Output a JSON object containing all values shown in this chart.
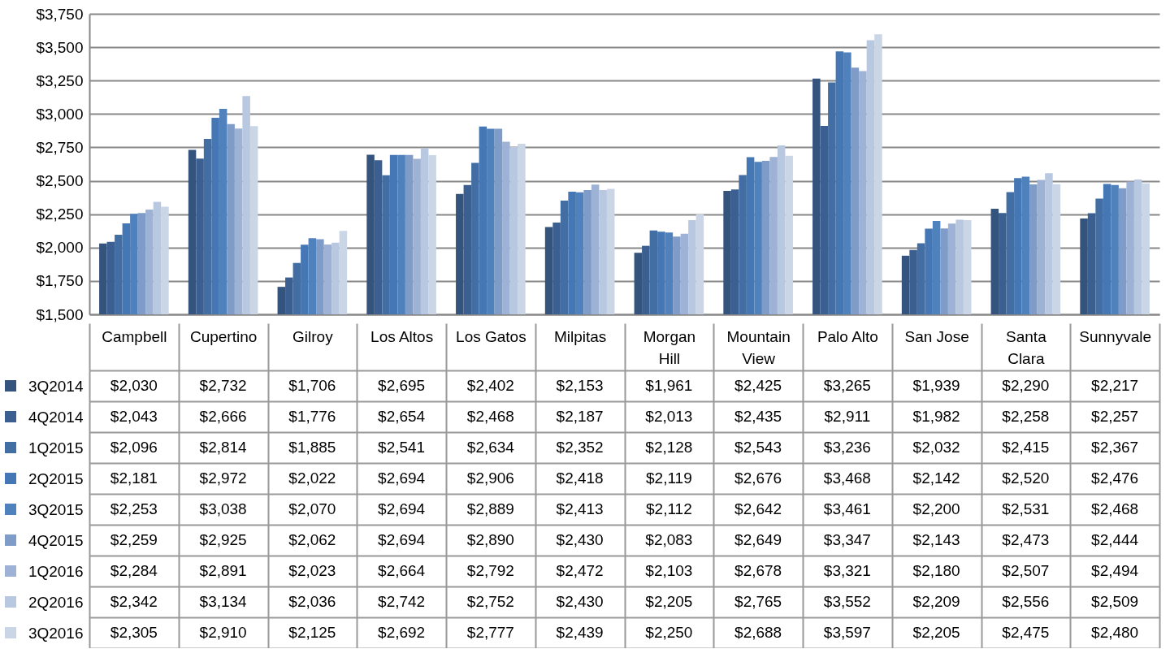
{
  "chart_data": {
    "type": "bar",
    "categories": [
      "Campbell",
      "Cupertino",
      "Gilroy",
      "Los Altos",
      "Los Gatos",
      "Milpitas",
      "Morgan Hill",
      "Mountain View",
      "Palo Alto",
      "San Jose",
      "Santa Clara",
      "Sunnyvale"
    ],
    "ylim": [
      1500,
      3750
    ],
    "yticks": [
      {
        "value": 1500,
        "label": "$1,500"
      },
      {
        "value": 1750,
        "label": "$1,750"
      },
      {
        "value": 2000,
        "label": "$2,000"
      },
      {
        "value": 2250,
        "label": "$2,250"
      },
      {
        "value": 2500,
        "label": "$2,500"
      },
      {
        "value": 2750,
        "label": "$2,750"
      },
      {
        "value": 3000,
        "label": "$3,000"
      },
      {
        "value": 3250,
        "label": "$3,250"
      },
      {
        "value": 3500,
        "label": "$3,500"
      },
      {
        "value": 3750,
        "label": "$3,750"
      }
    ],
    "grid": "y",
    "legend": "bottom left",
    "series": [
      {
        "name": "3Q2014",
        "color": "#34547e",
        "values": [
          2030,
          2732,
          1706,
          2695,
          2402,
          2153,
          1961,
          2425,
          3265,
          1939,
          2290,
          2217
        ],
        "value_labels": [
          "$2,030",
          "$2,732",
          "$1,706",
          "$2,695",
          "$2,402",
          "$2,153",
          "$1,961",
          "$2,425",
          "$3,265",
          "$1,939",
          "$2,290",
          "$2,217"
        ]
      },
      {
        "name": "4Q2014",
        "color": "#3a5f90",
        "values": [
          2043,
          2666,
          1776,
          2654,
          2468,
          2187,
          2013,
          2435,
          2911,
          1982,
          2258,
          2257
        ],
        "value_labels": [
          "$2,043",
          "$2,666",
          "$1,776",
          "$2,654",
          "$2,468",
          "$2,187",
          "$2,013",
          "$2,435",
          "$2,911",
          "$1,982",
          "$2,258",
          "$2,257"
        ]
      },
      {
        "name": "1Q2015",
        "color": "#426ea3",
        "values": [
          2096,
          2814,
          1885,
          2541,
          2634,
          2352,
          2128,
          2543,
          3236,
          2032,
          2415,
          2367
        ],
        "value_labels": [
          "$2,096",
          "$2,814",
          "$1,885",
          "$2,541",
          "$2,634",
          "$2,352",
          "$2,128",
          "$2,543",
          "$3,236",
          "$2,032",
          "$2,415",
          "$2,367"
        ]
      },
      {
        "name": "2Q2015",
        "color": "#4677b5",
        "values": [
          2181,
          2972,
          2022,
          2694,
          2906,
          2418,
          2119,
          2676,
          3468,
          2142,
          2520,
          2476
        ],
        "value_labels": [
          "$2,181",
          "$2,972",
          "$2,022",
          "$2,694",
          "$2,906",
          "$2,418",
          "$2,119",
          "$2,676",
          "$3,468",
          "$2,142",
          "$2,520",
          "$2,476"
        ]
      },
      {
        "name": "3Q2015",
        "color": "#4f81bd",
        "values": [
          2253,
          3038,
          2070,
          2694,
          2889,
          2413,
          2112,
          2642,
          3461,
          2200,
          2531,
          2468
        ],
        "value_labels": [
          "$2,253",
          "$3,038",
          "$2,070",
          "$2,694",
          "$2,889",
          "$2,413",
          "$2,112",
          "$2,642",
          "$3,461",
          "$2,200",
          "$2,531",
          "$2,468"
        ]
      },
      {
        "name": "4Q2015",
        "color": "#7f9cc8",
        "values": [
          2259,
          2925,
          2062,
          2694,
          2890,
          2430,
          2083,
          2649,
          3347,
          2143,
          2473,
          2444
        ],
        "value_labels": [
          "$2,259",
          "$2,925",
          "$2,062",
          "$2,694",
          "$2,890",
          "$2,430",
          "$2,083",
          "$2,649",
          "$3,347",
          "$2,143",
          "$2,473",
          "$2,444"
        ]
      },
      {
        "name": "1Q2016",
        "color": "#9db2d5",
        "values": [
          2284,
          2891,
          2023,
          2664,
          2792,
          2472,
          2103,
          2678,
          3321,
          2180,
          2507,
          2494
        ],
        "value_labels": [
          "$2,284",
          "$2,891",
          "$2,023",
          "$2,664",
          "$2,792",
          "$2,472",
          "$2,103",
          "$2,678",
          "$3,321",
          "$2,180",
          "$2,507",
          "$2,494"
        ]
      },
      {
        "name": "2Q2016",
        "color": "#b9c8e1",
        "values": [
          2342,
          3134,
          2036,
          2742,
          2752,
          2430,
          2205,
          2765,
          3552,
          2209,
          2556,
          2509
        ],
        "value_labels": [
          "$2,342",
          "$3,134",
          "$2,036",
          "$2,742",
          "$2,752",
          "$2,430",
          "$2,205",
          "$2,765",
          "$3,552",
          "$2,209",
          "$2,556",
          "$2,509"
        ]
      },
      {
        "name": "3Q2016",
        "color": "#cad5e6",
        "values": [
          2305,
          2910,
          2125,
          2692,
          2777,
          2439,
          2250,
          2688,
          3597,
          2205,
          2475,
          2480
        ],
        "value_labels": [
          "$2,305",
          "$2,910",
          "$2,125",
          "$2,692",
          "$2,777",
          "$2,439",
          "$2,250",
          "$2,688",
          "$3,597",
          "$2,205",
          "$2,475",
          "$2,480"
        ]
      }
    ]
  }
}
